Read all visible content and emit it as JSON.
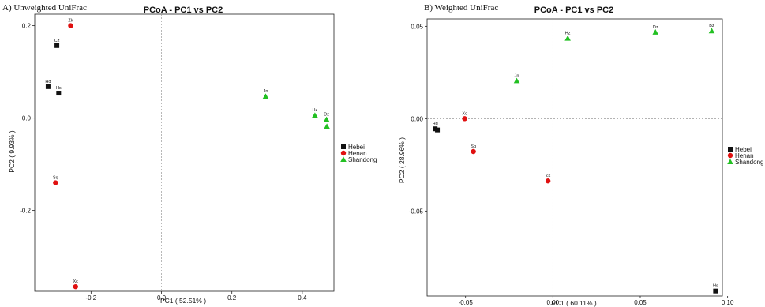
{
  "legend": [
    "Hebei",
    "Henan",
    "Shandong"
  ],
  "colors": {
    "Hebei": "#111111",
    "Henan": "#e01010",
    "Shandong": "#22c022"
  },
  "markers": {
    "Hebei": "square",
    "Henan": "circle",
    "Shandong": "triangle"
  },
  "chart_data": [
    {
      "type": "scatter",
      "panel_label": "A) Unweighted UniFrac",
      "title": "PCoA - PC1 vs PC2",
      "xlabel": "PC1 ( 52.51% )",
      "ylabel": "PC2 ( 9.93% )",
      "xlim": [
        -0.36,
        0.49
      ],
      "ylim": [
        -0.375,
        0.225
      ],
      "xticks": [
        -0.2,
        0.0,
        0.2,
        0.4
      ],
      "xtick_labels": [
        "-0.2",
        "0.0",
        "0.2",
        "0.4"
      ],
      "yticks": [
        -0.2,
        0.0,
        0.2
      ],
      "ytick_labels": [
        "-0.2",
        "0.0",
        "0.2"
      ],
      "grid": false,
      "legend_position": "right",
      "points": [
        {
          "label": "Zk",
          "group": "Henan",
          "x": -0.258,
          "y": 0.2
        },
        {
          "label": "Cz",
          "group": "Hebei",
          "x": -0.297,
          "y": 0.157
        },
        {
          "label": "Hd",
          "group": "Hebei",
          "x": -0.322,
          "y": 0.068
        },
        {
          "label": "Hs",
          "group": "Hebei",
          "x": -0.292,
          "y": 0.054
        },
        {
          "label": "Sq",
          "group": "Henan",
          "x": -0.301,
          "y": -0.14
        },
        {
          "label": "Xc",
          "group": "Henan",
          "x": -0.244,
          "y": -0.365
        },
        {
          "label": "Jn",
          "group": "Shandong",
          "x": 0.296,
          "y": 0.047
        },
        {
          "label": "Hz",
          "group": "Shandong",
          "x": 0.436,
          "y": 0.006
        },
        {
          "label": "Dz",
          "group": "Shandong",
          "x": 0.469,
          "y": -0.003
        },
        {
          "label": "",
          "group": "Shandong",
          "x": 0.47,
          "y": -0.018
        }
      ]
    },
    {
      "type": "scatter",
      "panel_label": "B) Weighted UniFrac",
      "title": "PCoA - PC1 vs PC2",
      "xlabel": "PC1 ( 60.11% )",
      "ylabel": "PC2 ( 28.96% )",
      "xlim": [
        -0.072,
        0.097
      ],
      "ylim": [
        -0.096,
        0.054
      ],
      "xticks": [
        -0.05,
        0.0,
        0.05,
        0.1
      ],
      "xtick_labels": [
        "-0.05",
        "0.00",
        "0.05",
        "0.10"
      ],
      "yticks": [
        -0.05,
        0.0,
        0.05
      ],
      "ytick_labels": [
        "-0.05",
        "0.00",
        "0.05"
      ],
      "grid": false,
      "legend_position": "right",
      "points": [
        {
          "label": "Hz",
          "group": "Shandong",
          "x": 0.0085,
          "y": 0.0435
        },
        {
          "label": "Dz",
          "group": "Shandong",
          "x": 0.0587,
          "y": 0.0468
        },
        {
          "label": "Bz",
          "group": "Shandong",
          "x": 0.0909,
          "y": 0.0475
        },
        {
          "label": "Jn",
          "group": "Shandong",
          "x": -0.0207,
          "y": 0.0205
        },
        {
          "label": "Xc",
          "group": "Henan",
          "x": -0.0505,
          "y": 0.0
        },
        {
          "label": "Hd",
          "group": "Hebei",
          "x": -0.0674,
          "y": -0.0055
        },
        {
          "label": "",
          "group": "Hebei",
          "x": -0.0661,
          "y": -0.0061
        },
        {
          "label": "Sq",
          "group": "Henan",
          "x": -0.0455,
          "y": -0.0178
        },
        {
          "label": "Zk",
          "group": "Henan",
          "x": -0.0028,
          "y": -0.0337
        },
        {
          "label": "Hs",
          "group": "Hebei",
          "x": 0.0931,
          "y": -0.0933
        }
      ]
    }
  ]
}
